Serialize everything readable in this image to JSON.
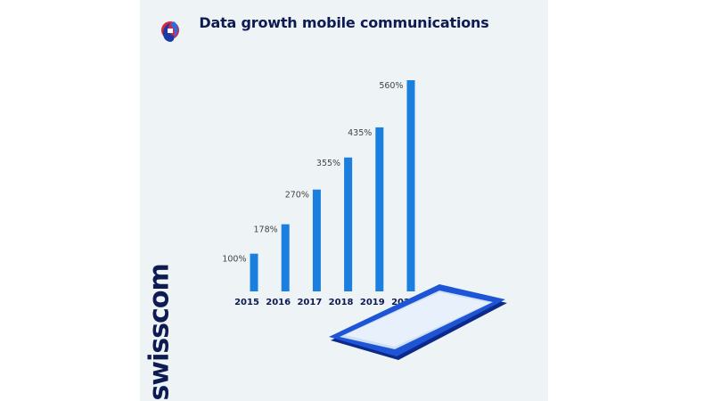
{
  "title": "Data growth mobile communications",
  "brand": "swisscom",
  "colors": {
    "bar": "#1a7fde",
    "text": "#0e1a52",
    "label": "#444444",
    "panel": "#eef3f5"
  },
  "chart_data": {
    "type": "bar",
    "title": "Data growth mobile communications",
    "categories": [
      "2015",
      "2016",
      "2017",
      "2018",
      "2019",
      "2020"
    ],
    "values": [
      100,
      178,
      270,
      355,
      435,
      560
    ],
    "value_labels": [
      "100%",
      "178%",
      "270%",
      "355%",
      "435%",
      "560%"
    ],
    "ylim": [
      0,
      560
    ],
    "grid": false,
    "xlabel": "",
    "ylabel": ""
  }
}
